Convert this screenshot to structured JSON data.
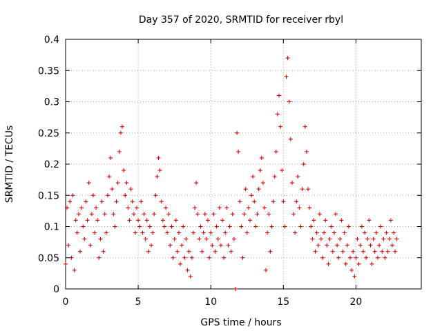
{
  "chart_data": {
    "type": "scatter",
    "title": "Day 357 of 2020, SRMTID for receiver rbyl",
    "xlabel": "GPS time / hours",
    "ylabel": "SRMTID / TECUs",
    "xlim": [
      0,
      24.5
    ],
    "ylim": [
      0,
      0.4
    ],
    "xticks": [
      0,
      5,
      10,
      15,
      20
    ],
    "xtick_labels": [
      "0",
      "5",
      "10",
      "15",
      "20"
    ],
    "yticks": [
      0,
      0.05,
      0.1,
      0.15,
      0.2,
      0.25,
      0.3,
      0.35,
      0.4
    ],
    "ytick_labels": [
      "0",
      "0.05",
      "0.1",
      "0.15",
      "0.2",
      "0.25",
      "0.3",
      "0.35",
      "0.4"
    ],
    "grid": true,
    "marker": "+",
    "color": "#e00000",
    "series": [
      {
        "name": "SRMTID",
        "points": [
          [
            0.0,
            0.04
          ],
          [
            0.1,
            0.13
          ],
          [
            0.2,
            0.07
          ],
          [
            0.3,
            0.14
          ],
          [
            0.4,
            0.05
          ],
          [
            0.5,
            0.15
          ],
          [
            0.6,
            0.03
          ],
          [
            0.7,
            0.11
          ],
          [
            0.8,
            0.09
          ],
          [
            0.9,
            0.12
          ],
          [
            1.0,
            0.06
          ],
          [
            1.1,
            0.13
          ],
          [
            1.2,
            0.1
          ],
          [
            1.3,
            0.08
          ],
          [
            1.4,
            0.14
          ],
          [
            1.5,
            0.11
          ],
          [
            1.6,
            0.17
          ],
          [
            1.7,
            0.07
          ],
          [
            1.8,
            0.12
          ],
          [
            1.9,
            0.15
          ],
          [
            2.0,
            0.09
          ],
          [
            2.1,
            0.13
          ],
          [
            2.2,
            0.11
          ],
          [
            2.3,
            0.05
          ],
          [
            2.4,
            0.08
          ],
          [
            2.5,
            0.14
          ],
          [
            2.6,
            0.06
          ],
          [
            2.7,
            0.12
          ],
          [
            2.8,
            0.09
          ],
          [
            2.9,
            0.15
          ],
          [
            3.0,
            0.18
          ],
          [
            3.1,
            0.21
          ],
          [
            3.2,
            0.16
          ],
          [
            3.3,
            0.12
          ],
          [
            3.4,
            0.1
          ],
          [
            3.5,
            0.14
          ],
          [
            3.6,
            0.17
          ],
          [
            3.7,
            0.22
          ],
          [
            3.8,
            0.25
          ],
          [
            3.9,
            0.26
          ],
          [
            4.0,
            0.19
          ],
          [
            4.1,
            0.15
          ],
          [
            4.2,
            0.17
          ],
          [
            4.3,
            0.13
          ],
          [
            4.4,
            0.11
          ],
          [
            4.5,
            0.16
          ],
          [
            4.6,
            0.14
          ],
          [
            4.7,
            0.12
          ],
          [
            4.8,
            0.09
          ],
          [
            4.9,
            0.13
          ],
          [
            5.0,
            0.11
          ],
          [
            5.1,
            0.1
          ],
          [
            5.2,
            0.14
          ],
          [
            5.3,
            0.09
          ],
          [
            5.4,
            0.12
          ],
          [
            5.5,
            0.08
          ],
          [
            5.6,
            0.11
          ],
          [
            5.7,
            0.06
          ],
          [
            5.8,
            0.1
          ],
          [
            5.9,
            0.07
          ],
          [
            6.0,
            0.09
          ],
          [
            6.1,
            0.12
          ],
          [
            6.2,
            0.15
          ],
          [
            6.3,
            0.18
          ],
          [
            6.4,
            0.21
          ],
          [
            6.5,
            0.19
          ],
          [
            6.6,
            0.14
          ],
          [
            6.7,
            0.11
          ],
          [
            6.8,
            0.1
          ],
          [
            6.9,
            0.13
          ],
          [
            7.0,
            0.09
          ],
          [
            7.1,
            0.12
          ],
          [
            7.2,
            0.07
          ],
          [
            7.3,
            0.1
          ],
          [
            7.4,
            0.05
          ],
          [
            7.5,
            0.08
          ],
          [
            7.6,
            0.11
          ],
          [
            7.7,
            0.06
          ],
          [
            7.8,
            0.09
          ],
          [
            7.9,
            0.04
          ],
          [
            8.0,
            0.07
          ],
          [
            8.1,
            0.1
          ],
          [
            8.2,
            0.05
          ],
          [
            8.3,
            0.08
          ],
          [
            8.4,
            0.03
          ],
          [
            8.5,
            0.06
          ],
          [
            8.6,
            0.02
          ],
          [
            8.7,
            0.05
          ],
          [
            8.8,
            0.09
          ],
          [
            8.9,
            0.13
          ],
          [
            9.0,
            0.17
          ],
          [
            9.1,
            0.12
          ],
          [
            9.2,
            0.08
          ],
          [
            9.3,
            0.1
          ],
          [
            9.4,
            0.06
          ],
          [
            9.5,
            0.09
          ],
          [
            9.6,
            0.12
          ],
          [
            9.7,
            0.08
          ],
          [
            9.8,
            0.11
          ],
          [
            9.9,
            0.05
          ],
          [
            10.0,
            0.09
          ],
          [
            10.1,
            0.07
          ],
          [
            10.2,
            0.12
          ],
          [
            10.3,
            0.06
          ],
          [
            10.4,
            0.1
          ],
          [
            10.5,
            0.08
          ],
          [
            10.6,
            0.13
          ],
          [
            10.7,
            0.07
          ],
          [
            10.8,
            0.11
          ],
          [
            10.9,
            0.05
          ],
          [
            11.0,
            0.09
          ],
          [
            11.1,
            0.13
          ],
          [
            11.2,
            0.07
          ],
          [
            11.3,
            0.1
          ],
          [
            11.4,
            0.06
          ],
          [
            11.5,
            0.12
          ],
          [
            11.6,
            0.08
          ],
          [
            11.7,
            0.0
          ],
          [
            11.8,
            0.25
          ],
          [
            11.9,
            0.22
          ],
          [
            12.0,
            0.14
          ],
          [
            12.1,
            0.1
          ],
          [
            12.2,
            0.05
          ],
          [
            12.3,
            0.12
          ],
          [
            12.4,
            0.16
          ],
          [
            12.5,
            0.09
          ],
          [
            12.6,
            0.13
          ],
          [
            12.7,
            0.11
          ],
          [
            12.8,
            0.15
          ],
          [
            12.9,
            0.18
          ],
          [
            13.0,
            0.14
          ],
          [
            13.1,
            0.1
          ],
          [
            13.2,
            0.12
          ],
          [
            13.3,
            0.16
          ],
          [
            13.4,
            0.19
          ],
          [
            13.5,
            0.21
          ],
          [
            13.6,
            0.17
          ],
          [
            13.7,
            0.13
          ],
          [
            13.8,
            0.03
          ],
          [
            13.9,
            0.09
          ],
          [
            14.0,
            0.12
          ],
          [
            14.1,
            0.06
          ],
          [
            14.2,
            0.1
          ],
          [
            14.3,
            0.14
          ],
          [
            14.4,
            0.18
          ],
          [
            14.5,
            0.22
          ],
          [
            14.6,
            0.28
          ],
          [
            14.7,
            0.31
          ],
          [
            14.8,
            0.26
          ],
          [
            14.9,
            0.19
          ],
          [
            15.0,
            0.14
          ],
          [
            15.1,
            0.1
          ],
          [
            15.2,
            0.34
          ],
          [
            15.3,
            0.37
          ],
          [
            15.4,
            0.3
          ],
          [
            15.5,
            0.24
          ],
          [
            15.6,
            0.17
          ],
          [
            15.7,
            0.12
          ],
          [
            15.8,
            0.09
          ],
          [
            15.9,
            0.14
          ],
          [
            16.0,
            0.18
          ],
          [
            16.1,
            0.13
          ],
          [
            16.2,
            0.1
          ],
          [
            16.3,
            0.16
          ],
          [
            16.4,
            0.2
          ],
          [
            16.5,
            0.26
          ],
          [
            16.6,
            0.22
          ],
          [
            16.7,
            0.16
          ],
          [
            16.8,
            0.13
          ],
          [
            16.9,
            0.1
          ],
          [
            17.0,
            0.08
          ],
          [
            17.1,
            0.11
          ],
          [
            17.2,
            0.06
          ],
          [
            17.3,
            0.09
          ],
          [
            17.4,
            0.07
          ],
          [
            17.5,
            0.12
          ],
          [
            17.6,
            0.08
          ],
          [
            17.7,
            0.05
          ],
          [
            17.8,
            0.09
          ],
          [
            17.9,
            0.11
          ],
          [
            18.0,
            0.07
          ],
          [
            18.1,
            0.04
          ],
          [
            18.2,
            0.08
          ],
          [
            18.3,
            0.1
          ],
          [
            18.4,
            0.06
          ],
          [
            18.5,
            0.09
          ],
          [
            18.6,
            0.12
          ],
          [
            18.7,
            0.07
          ],
          [
            18.8,
            0.05
          ],
          [
            18.9,
            0.08
          ],
          [
            19.0,
            0.11
          ],
          [
            19.1,
            0.06
          ],
          [
            19.2,
            0.09
          ],
          [
            19.3,
            0.04
          ],
          [
            19.4,
            0.07
          ],
          [
            19.5,
            0.1
          ],
          [
            19.6,
            0.05
          ],
          [
            19.7,
            0.03
          ],
          [
            19.8,
            0.06
          ],
          [
            19.9,
            0.02
          ],
          [
            20.0,
            0.05
          ],
          [
            20.1,
            0.08
          ],
          [
            20.2,
            0.04
          ],
          [
            20.3,
            0.07
          ],
          [
            20.4,
            0.1
          ],
          [
            20.5,
            0.06
          ],
          [
            20.6,
            0.09
          ],
          [
            20.7,
            0.05
          ],
          [
            20.8,
            0.08
          ],
          [
            20.9,
            0.11
          ],
          [
            21.0,
            0.07
          ],
          [
            21.1,
            0.04
          ],
          [
            21.2,
            0.08
          ],
          [
            21.3,
            0.06
          ],
          [
            21.4,
            0.09
          ],
          [
            21.5,
            0.05
          ],
          [
            21.6,
            0.07
          ],
          [
            21.7,
            0.1
          ],
          [
            21.8,
            0.06
          ],
          [
            21.9,
            0.08
          ],
          [
            22.0,
            0.05
          ],
          [
            22.1,
            0.09
          ],
          [
            22.2,
            0.06
          ],
          [
            22.3,
            0.08
          ],
          [
            22.4,
            0.11
          ],
          [
            22.5,
            0.07
          ],
          [
            22.6,
            0.09
          ],
          [
            22.7,
            0.06
          ],
          [
            22.8,
            0.08
          ]
        ]
      }
    ]
  }
}
